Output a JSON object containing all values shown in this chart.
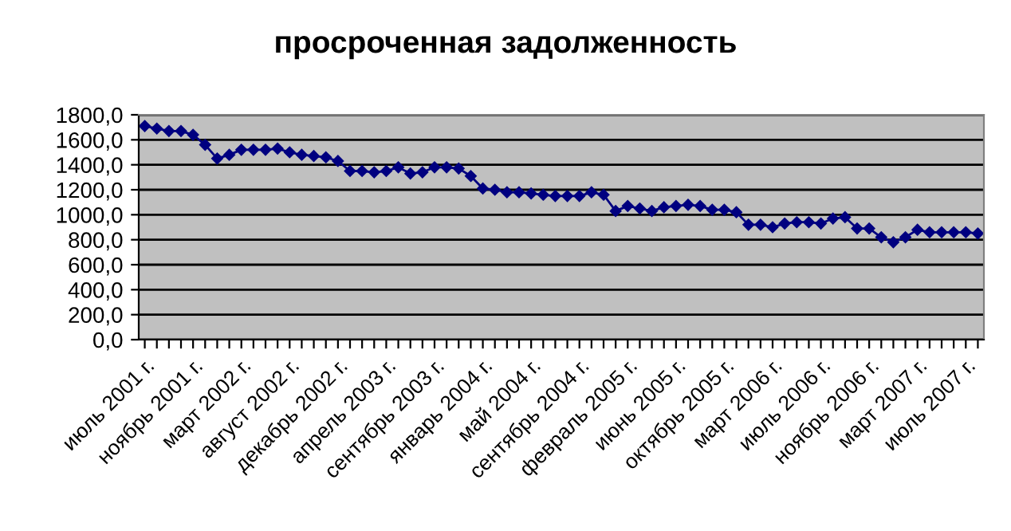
{
  "chart_data": {
    "type": "line",
    "title": "просроченная задолженность",
    "categories": [
      "июль 2001 г.",
      null,
      null,
      null,
      "ноябрь 2001 г.",
      null,
      null,
      null,
      "март 2002 г.",
      null,
      null,
      null,
      "август 2002 г.",
      null,
      null,
      null,
      "декабрь 2002 г.",
      null,
      null,
      null,
      "апрель 2003 г.",
      null,
      null,
      null,
      "сентябрь 2003 г.",
      null,
      null,
      null,
      "январь 2004 г.",
      null,
      null,
      null,
      "май 2004 г.",
      null,
      null,
      null,
      "сентябрь 2004 г.",
      null,
      null,
      null,
      "февраль 2005 г.",
      null,
      null,
      null,
      "июнь 2005 г.",
      null,
      null,
      null,
      "октябрь 2005 г.",
      null,
      null,
      null,
      "март 2006 г.",
      null,
      null,
      null,
      "июль 2006 г.",
      null,
      null,
      null,
      "ноябрь 2006 г.",
      null,
      null,
      null,
      "март 2007 г.",
      null,
      null,
      null,
      "июль 2007 г.",
      null
    ],
    "series": [
      {
        "color": "#000080",
        "values": [
          1710,
          1690,
          1670,
          1670,
          1640,
          1560,
          1450,
          1480,
          1520,
          1520,
          1520,
          1530,
          1500,
          1480,
          1470,
          1460,
          1430,
          1350,
          1350,
          1340,
          1350,
          1380,
          1330,
          1340,
          1380,
          1380,
          1370,
          1310,
          1210,
          1200,
          1180,
          1180,
          1170,
          1160,
          1150,
          1150,
          1150,
          1180,
          1160,
          1030,
          1070,
          1050,
          1030,
          1060,
          1070,
          1080,
          1070,
          1040,
          1040,
          1020,
          920,
          920,
          900,
          930,
          940,
          940,
          930,
          970,
          980,
          890,
          890,
          820,
          780,
          820,
          880,
          860,
          860,
          860,
          860,
          850
        ]
      }
    ],
    "ylim": [
      0,
      1800
    ],
    "yticks": [
      {
        "value": 0,
        "label": "0,0"
      },
      {
        "value": 200,
        "label": "200,0"
      },
      {
        "value": 400,
        "label": "400,0"
      },
      {
        "value": 600,
        "label": "600,0"
      },
      {
        "value": 800,
        "label": "800,0"
      },
      {
        "value": 1000,
        "label": "1000,0"
      },
      {
        "value": 1200,
        "label": "1200,0"
      },
      {
        "value": 1400,
        "label": "1400,0"
      },
      {
        "value": 1600,
        "label": "1600,0"
      },
      {
        "value": 1800,
        "label": "1800,0"
      }
    ],
    "grid": "y",
    "legend": false,
    "marker": "diamond",
    "line_style": "solid"
  }
}
